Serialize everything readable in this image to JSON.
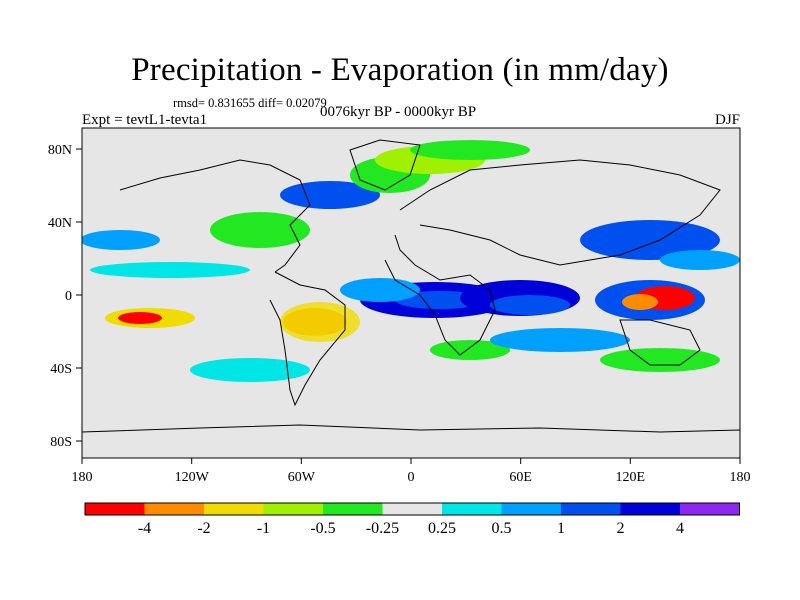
{
  "header": {
    "title": "Precipitation - Evaporation (in mm/day)",
    "stats": "rmsd= 0.831655 diff= 0.02079",
    "experiment": "Expt = tevtL1-tevta1",
    "period": "0076kyr BP - 0000kyr BP",
    "season": "DJF"
  },
  "map": {
    "lat_ticks": [
      "80N",
      "40N",
      "0",
      "40S",
      "80S"
    ],
    "lon_ticks": [
      "180",
      "120W",
      "60W",
      "0",
      "60E",
      "120E",
      "180"
    ],
    "background_color": "#e6e6e6",
    "coast_color": "#000000"
  },
  "colorbar": {
    "labels": [
      "-4",
      "-2",
      "-1",
      "-0.5",
      "-0.25",
      "0.25",
      "0.5",
      "1",
      "2",
      "4"
    ],
    "colors": [
      "#ff0000",
      "#ff8c00",
      "#f0dc00",
      "#a0f000",
      "#22e822",
      "#e6e6e6",
      "#00e6e6",
      "#00a0ff",
      "#0050f0",
      "#0000d8",
      "#8c28f0"
    ]
  }
}
